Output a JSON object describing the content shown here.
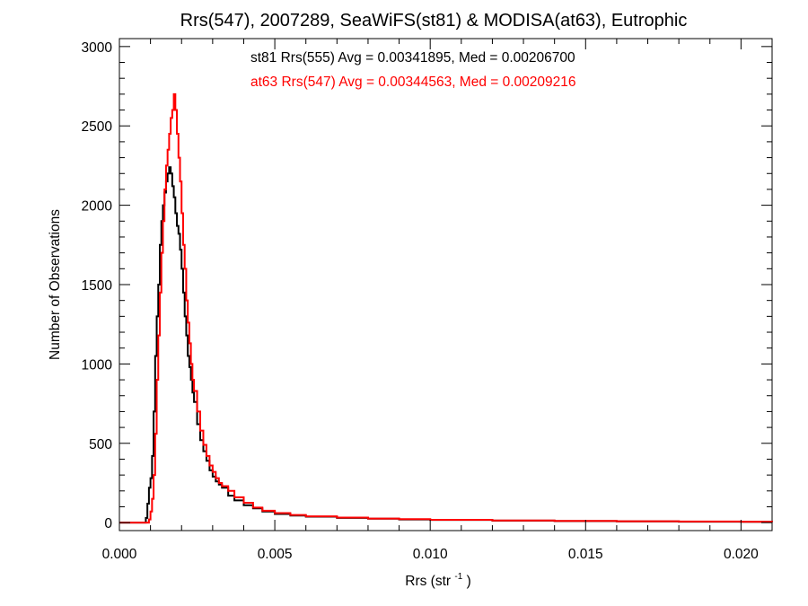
{
  "chart_data": {
    "type": "line",
    "title": "Rrs(547), 2007289, SeaWiFS(st81) & MODISA(at63), Eutrophic",
    "xlabel_base": "Rrs (str",
    "xlabel_sup": "-1",
    "xlabel_end": ")",
    "ylabel": "Number of Observations",
    "xlim": [
      0.0,
      0.021
    ],
    "ylim": [
      -50,
      3050
    ],
    "xticks": [
      {
        "value": 0.0,
        "label": "0.000"
      },
      {
        "value": 0.005,
        "label": "0.005"
      },
      {
        "value": 0.01,
        "label": "0.010"
      },
      {
        "value": 0.015,
        "label": "0.015"
      },
      {
        "value": 0.02,
        "label": "0.020"
      }
    ],
    "yticks": [
      {
        "value": 0,
        "label": "0"
      },
      {
        "value": 500,
        "label": "500"
      },
      {
        "value": 1000,
        "label": "1000"
      },
      {
        "value": 1500,
        "label": "1500"
      },
      {
        "value": 2000,
        "label": "2000"
      },
      {
        "value": 2500,
        "label": "2500"
      },
      {
        "value": 3000,
        "label": "3000"
      }
    ],
    "grid": false,
    "legend_position": "top-center",
    "series": [
      {
        "name": "st81 Rrs(555) Avg = 0.00341895, Med = 0.00206700",
        "color": "#000000",
        "x": [
          0.0,
          0.0008,
          0.00085,
          0.0009,
          0.00095,
          0.001,
          0.00105,
          0.0011,
          0.00115,
          0.0012,
          0.00125,
          0.0013,
          0.00135,
          0.0014,
          0.00145,
          0.0015,
          0.00155,
          0.0016,
          0.00165,
          0.0017,
          0.00175,
          0.0018,
          0.00185,
          0.0019,
          0.00195,
          0.002,
          0.00205,
          0.0021,
          0.00215,
          0.0022,
          0.00225,
          0.0023,
          0.00235,
          0.0024,
          0.0025,
          0.0026,
          0.0027,
          0.0028,
          0.0029,
          0.003,
          0.0031,
          0.0032,
          0.0033,
          0.0035,
          0.0037,
          0.004,
          0.0043,
          0.0046,
          0.005,
          0.0055,
          0.006,
          0.007,
          0.008,
          0.009,
          0.01,
          0.012,
          0.014,
          0.016,
          0.018,
          0.02,
          0.021
        ],
        "y": [
          0,
          0,
          30,
          120,
          220,
          280,
          420,
          700,
          1050,
          1300,
          1500,
          1750,
          1900,
          2000,
          2080,
          2150,
          2200,
          2240,
          2200,
          2120,
          2050,
          1950,
          1870,
          1820,
          1720,
          1600,
          1450,
          1300,
          1180,
          1050,
          980,
          900,
          820,
          760,
          620,
          520,
          450,
          390,
          330,
          290,
          260,
          240,
          220,
          170,
          140,
          110,
          90,
          70,
          55,
          45,
          38,
          30,
          25,
          20,
          17,
          13,
          10,
          8,
          6,
          5,
          4
        ]
      },
      {
        "name": "at63 Rrs(547) Avg = 0.00344563, Med = 0.00209216",
        "color": "#ff0000",
        "x": [
          0.0,
          0.0009,
          0.00095,
          0.001,
          0.00105,
          0.0011,
          0.00115,
          0.0012,
          0.00125,
          0.0013,
          0.00135,
          0.0014,
          0.00145,
          0.0015,
          0.00155,
          0.0016,
          0.00165,
          0.0017,
          0.00175,
          0.0018,
          0.00185,
          0.0019,
          0.00195,
          0.002,
          0.00205,
          0.0021,
          0.00215,
          0.0022,
          0.00225,
          0.0023,
          0.00235,
          0.0024,
          0.0025,
          0.0026,
          0.0027,
          0.0028,
          0.0029,
          0.003,
          0.0031,
          0.0032,
          0.0033,
          0.0035,
          0.0037,
          0.004,
          0.0043,
          0.0046,
          0.005,
          0.0055,
          0.006,
          0.007,
          0.008,
          0.009,
          0.01,
          0.012,
          0.014,
          0.016,
          0.018,
          0.02,
          0.021
        ],
        "y": [
          0,
          0,
          20,
          70,
          150,
          300,
          560,
          900,
          1180,
          1450,
          1700,
          1900,
          2100,
          2250,
          2350,
          2450,
          2550,
          2600,
          2700,
          2600,
          2450,
          2300,
          2150,
          1950,
          1750,
          1600,
          1400,
          1260,
          1130,
          1000,
          900,
          830,
          700,
          580,
          490,
          420,
          360,
          320,
          280,
          250,
          230,
          200,
          160,
          125,
          95,
          75,
          60,
          48,
          40,
          32,
          26,
          22,
          18,
          14,
          11,
          9,
          7,
          6,
          5
        ]
      }
    ]
  }
}
